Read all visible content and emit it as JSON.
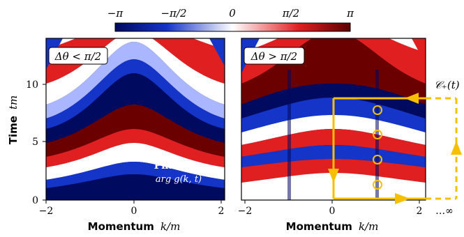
{
  "colorbar": {
    "ticks": [
      "−π",
      "−π/2",
      "0",
      "π/2",
      "π"
    ],
    "colors": {
      "low": "#000a5e",
      "mid_low": "#1535c8",
      "white": "#ffffff",
      "mid_high": "#e02020",
      "high": "#5a0000"
    }
  },
  "left_panel": {
    "condition_label": "Δθ < π/2",
    "phase_title": "Phase",
    "phase_formula": "arg g(k, t)",
    "x_ticks": [
      "−2",
      "0",
      "2"
    ]
  },
  "right_panel": {
    "condition_label": "Δθ > π/2",
    "contour_label": "𝒞₊(t)",
    "x_ticks": [
      "−2",
      "0",
      "2",
      "…∞"
    ],
    "contour_color": "#f6c000"
  },
  "y_axis": {
    "label_bold": "Time",
    "label_math": "tm",
    "ticks": [
      "0",
      "5",
      "10"
    ]
  },
  "x_axis": {
    "label_bold": "Momentum",
    "label_math": "k/m"
  }
}
